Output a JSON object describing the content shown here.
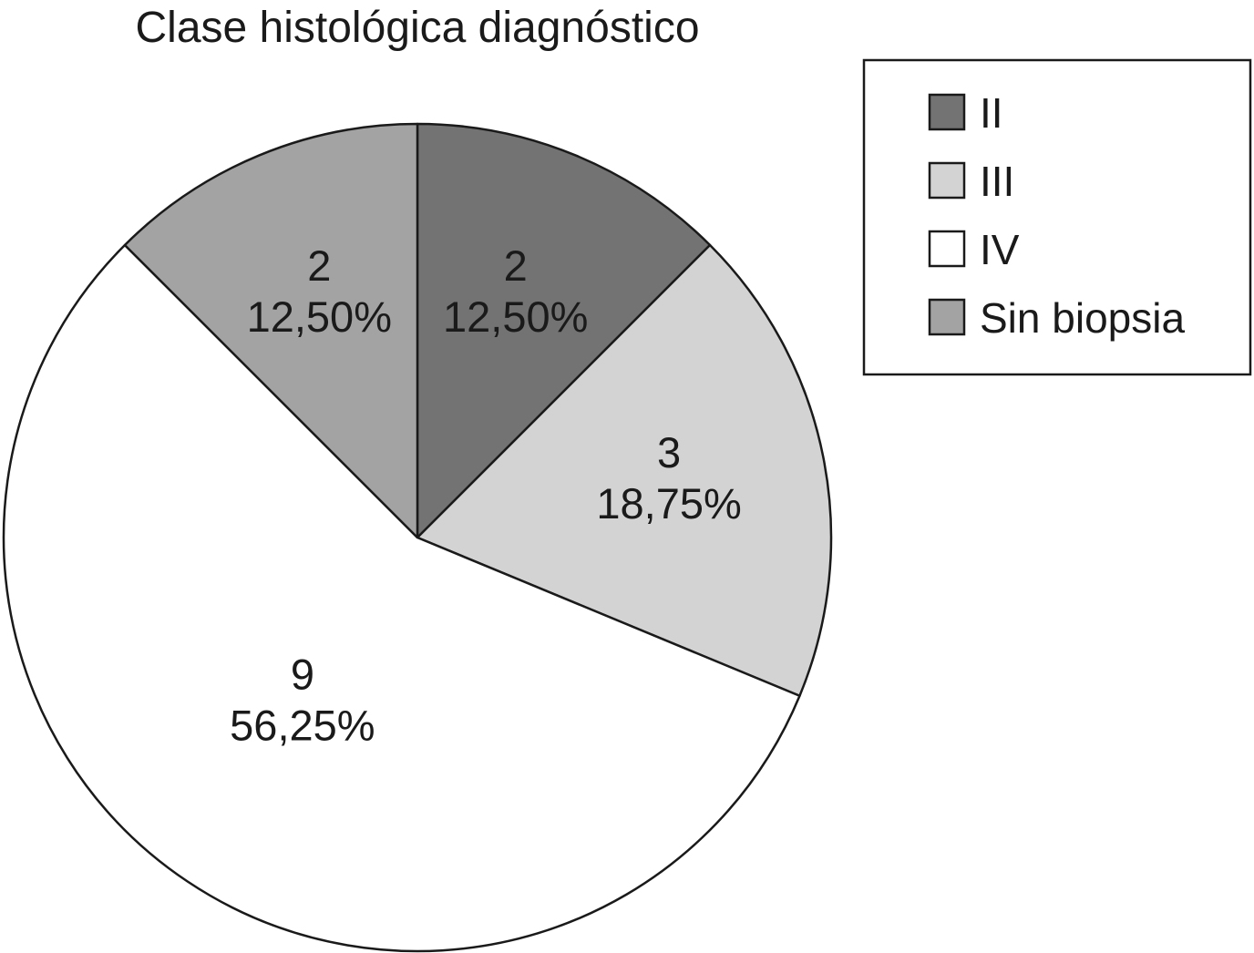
{
  "chart_data": {
    "type": "pie",
    "title": "Clase histológica diagnóstico",
    "start": "top",
    "direction": "clockwise",
    "legend_position": "top-right",
    "slices": [
      {
        "label": "II",
        "value": 2,
        "count_label": "2",
        "percent_label": "12,50%",
        "color": "#737373"
      },
      {
        "label": "III",
        "value": 3,
        "count_label": "3",
        "percent_label": "18,75%",
        "color": "#d3d3d3"
      },
      {
        "label": "IV",
        "value": 9,
        "count_label": "9",
        "percent_label": "56,25%",
        "color": "#ffffff"
      },
      {
        "label": "Sin biopsia",
        "value": 2,
        "count_label": "2",
        "percent_label": "12,50%",
        "color": "#a3a3a3"
      }
    ]
  }
}
